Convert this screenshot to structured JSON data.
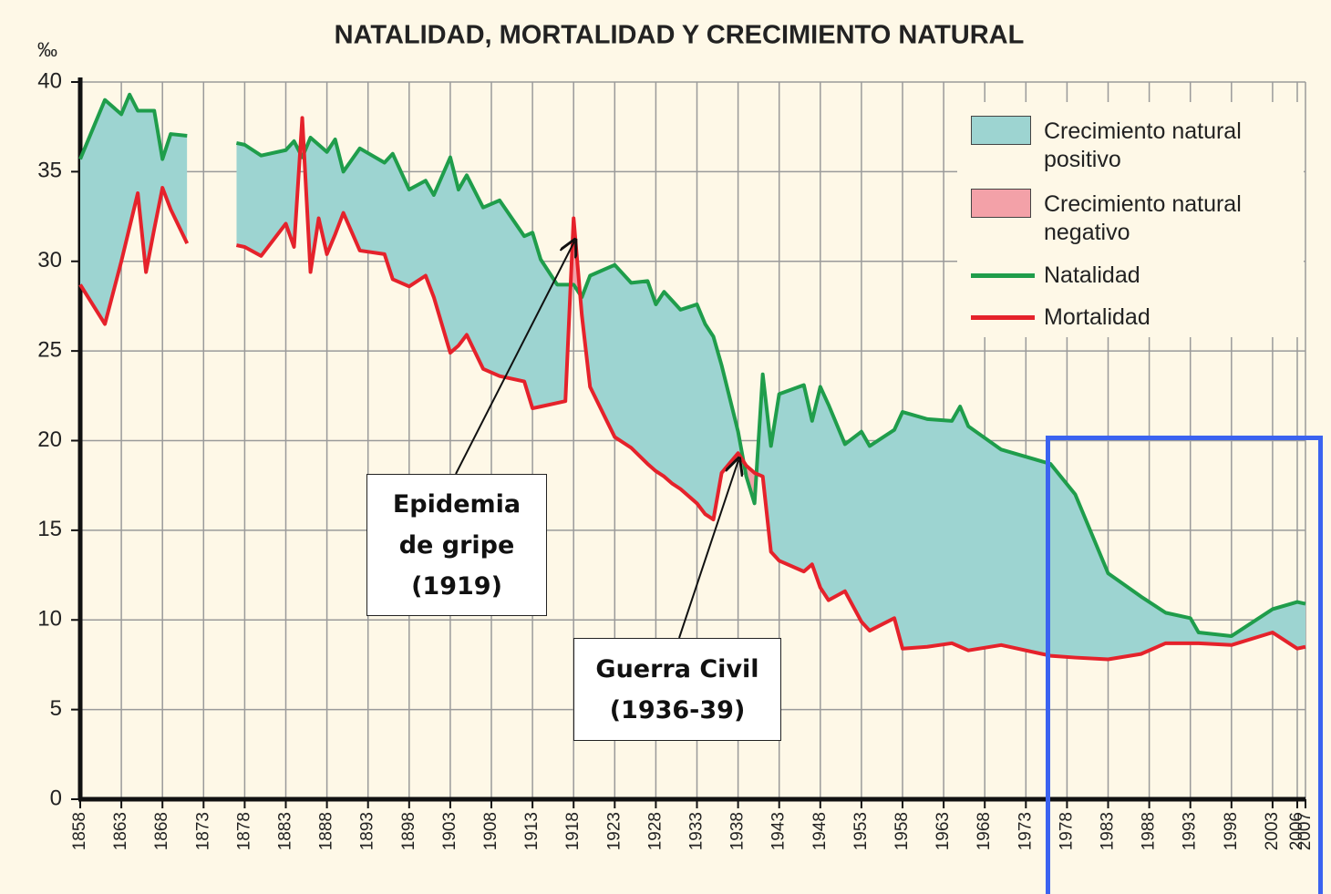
{
  "chart_data": {
    "type": "line",
    "title": "NATALIDAD, MORTALIDAD Y CRECIMIENTO NATURAL",
    "y_label": "‰",
    "x": [
      1858,
      1861,
      1863,
      1864,
      1865,
      1866,
      1867,
      1868,
      1869,
      1871,
      1872,
      1877,
      1878,
      1880,
      1883,
      1884,
      1885,
      1886,
      1887,
      1888,
      1889,
      1890,
      1892,
      1895,
      1896,
      1898,
      1900,
      1901,
      1903,
      1904,
      1905,
      1907,
      1909,
      1912,
      1913,
      1914,
      1916,
      1917,
      1918,
      1919,
      1920,
      1923,
      1925,
      1927,
      1928,
      1929,
      1930,
      1931,
      1933,
      1934,
      1935,
      1936,
      1938,
      1939,
      1940,
      1941,
      1942,
      1943,
      1946,
      1947,
      1948,
      1949,
      1951,
      1953,
      1954,
      1957,
      1958,
      1961,
      1964,
      1965,
      1966,
      1970,
      1976,
      1979,
      1983,
      1987,
      1990,
      1993,
      1994,
      1998,
      2003,
      2006,
      2007
    ],
    "series": [
      {
        "name": "Natalidad",
        "color": "#1f9d4b",
        "values": [
          35.7,
          39.0,
          38.2,
          39.3,
          38.4,
          38.4,
          38.4,
          35.7,
          37.1,
          37.0,
          null,
          36.6,
          36.5,
          35.9,
          36.2,
          36.7,
          35.8,
          36.9,
          36.5,
          36.1,
          36.8,
          35.0,
          36.3,
          35.5,
          36.0,
          34.0,
          34.5,
          33.7,
          35.8,
          34.0,
          34.8,
          33.0,
          33.4,
          31.4,
          31.6,
          30.1,
          28.7,
          28.7,
          28.7,
          28.0,
          29.2,
          29.8,
          28.8,
          28.9,
          27.6,
          28.3,
          27.8,
          27.3,
          27.6,
          26.5,
          25.8,
          24.2,
          20.5,
          18.0,
          16.5,
          23.7,
          19.7,
          22.6,
          23.1,
          21.1,
          23.0,
          22.0,
          19.8,
          20.5,
          19.7,
          20.6,
          21.6,
          21.2,
          21.1,
          21.9,
          20.8,
          19.5,
          18.7,
          17.0,
          12.6,
          11.3,
          10.4,
          10.1,
          9.3,
          9.1,
          10.6,
          11.0,
          10.9
        ]
      },
      {
        "name": "Mortalidad",
        "color": "#e5222b",
        "values": [
          28.7,
          26.5,
          30.0,
          31.9,
          33.8,
          29.4,
          31.8,
          34.1,
          32.9,
          31.0,
          null,
          30.9,
          30.8,
          30.3,
          32.1,
          30.8,
          38.0,
          29.4,
          32.4,
          30.4,
          31.5,
          32.7,
          30.6,
          30.4,
          29.0,
          28.6,
          29.2,
          28.0,
          24.9,
          25.3,
          25.9,
          24.0,
          23.6,
          23.3,
          21.8,
          21.9,
          22.1,
          22.2,
          32.4,
          27.0,
          23.0,
          20.2,
          19.6,
          18.7,
          18.3,
          18.0,
          17.6,
          17.3,
          16.5,
          15.9,
          15.6,
          18.2,
          19.3,
          18.6,
          18.2,
          18.0,
          13.8,
          13.3,
          12.7,
          13.1,
          11.8,
          11.1,
          11.6,
          9.9,
          9.4,
          10.1,
          8.4,
          8.5,
          8.7,
          8.5,
          8.3,
          8.6,
          8.0,
          7.9,
          7.8,
          8.1,
          8.7,
          8.7,
          8.7,
          8.6,
          9.3,
          8.4,
          8.5
        ]
      }
    ],
    "areas": [
      {
        "name": "Crecimiento natural positivo",
        "color": "#9dd4d1"
      },
      {
        "name": "Crecimiento natural negativo",
        "color": "#f3a1a8"
      }
    ],
    "xlim": [
      1858,
      2007
    ],
    "xticks": [
      1858,
      1863,
      1868,
      1873,
      1878,
      1883,
      1888,
      1893,
      1898,
      1903,
      1908,
      1913,
      1918,
      1923,
      1928,
      1933,
      1938,
      1943,
      1948,
      1953,
      1958,
      1963,
      1968,
      1973,
      1978,
      1983,
      1988,
      1993,
      1998,
      2003,
      2006,
      2007
    ],
    "ylim": [
      0,
      40
    ],
    "yticks": [
      0,
      5,
      10,
      15,
      20,
      25,
      30,
      35,
      40
    ],
    "grid": true,
    "legend": "upper right",
    "annotations": [
      {
        "text": "Epidemia de gripe (1919)"
      },
      {
        "text": "Guerra Civil (1936-39)"
      }
    ]
  }
}
